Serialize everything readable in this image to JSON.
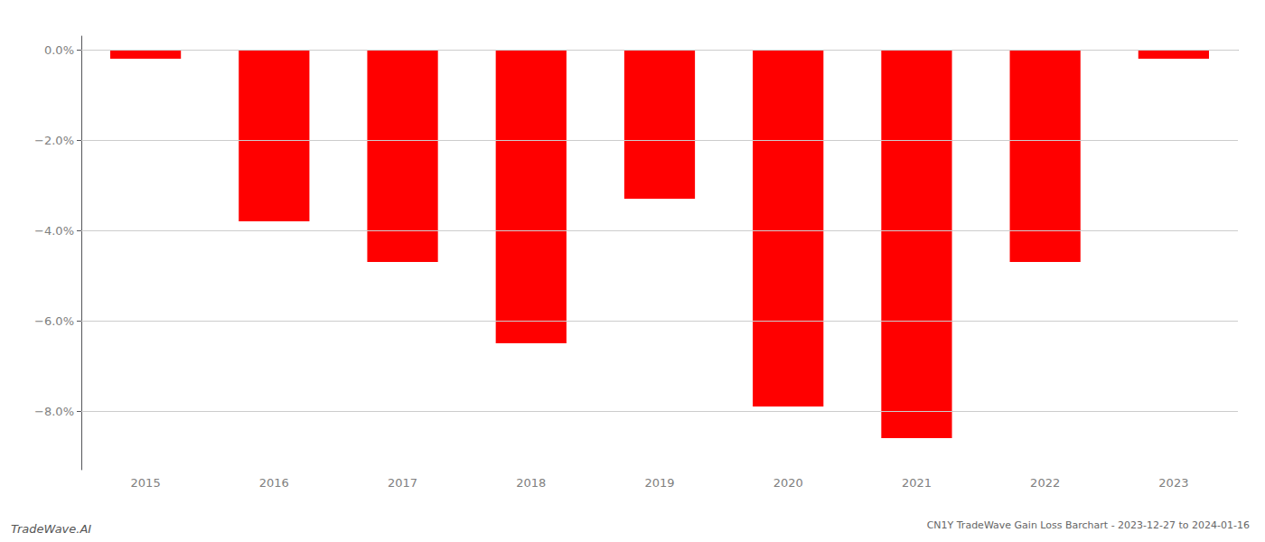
{
  "chart_data": {
    "type": "bar",
    "title": "CN1Y TradeWave Gain Loss Barchart - 2023-12-27 to 2024-01-16",
    "annotations": [
      "TradeWave.AI"
    ],
    "categories": [
      "2015",
      "2016",
      "2017",
      "2018",
      "2019",
      "2020",
      "2021",
      "2022",
      "2023"
    ],
    "values": [
      -0.002,
      -0.038,
      -0.047,
      -0.065,
      -0.033,
      -0.079,
      -0.086,
      -0.047,
      -0.002
    ],
    "color": "#ff0000",
    "ylim": [
      -0.093,
      0.003
    ],
    "yticks": [
      {
        "value": 0.0,
        "label": "0.0%"
      },
      {
        "value": -0.02,
        "label": "−2.0%"
      },
      {
        "value": -0.04,
        "label": "−4.0%"
      },
      {
        "value": -0.06,
        "label": "−6.0%"
      },
      {
        "value": -0.08,
        "label": "−8.0%"
      }
    ],
    "grid": true
  }
}
